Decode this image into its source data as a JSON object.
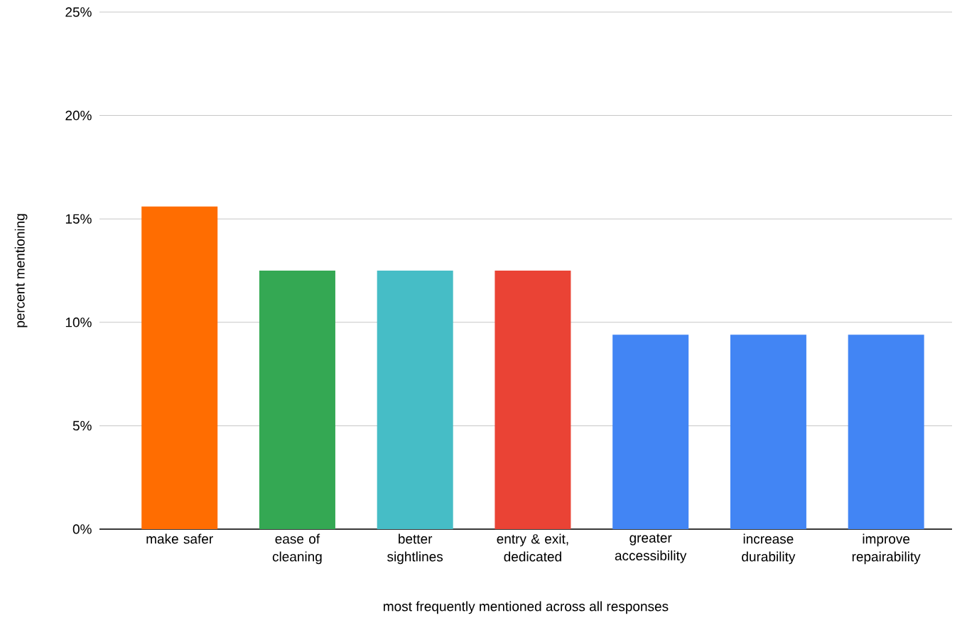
{
  "chart_data": {
    "type": "bar",
    "xlabel": "most frequently mentioned across all responses",
    "ylabel": "percent mentioning",
    "categories": [
      "make safer",
      "ease of cleaning",
      "better sightlines",
      "entry & exit, dedicated",
      "greater accessibility",
      "increase durability",
      "improve repairability"
    ],
    "values": [
      15.6,
      12.5,
      12.5,
      12.5,
      9.4,
      9.4,
      9.4
    ],
    "colors": [
      "#ff6d01",
      "#34a853",
      "#46bdc6",
      "#ea4335",
      "#4285f4",
      "#4285f4",
      "#4285f4"
    ],
    "ylim": [
      0,
      25
    ],
    "yticks": [
      {
        "value": 0,
        "label": "0%"
      },
      {
        "value": 5,
        "label": "5%"
      },
      {
        "value": 10,
        "label": "10%"
      },
      {
        "value": 15,
        "label": "15%"
      },
      {
        "value": 20,
        "label": "20%"
      },
      {
        "value": 25,
        "label": "25%"
      }
    ],
    "grid": "y"
  }
}
